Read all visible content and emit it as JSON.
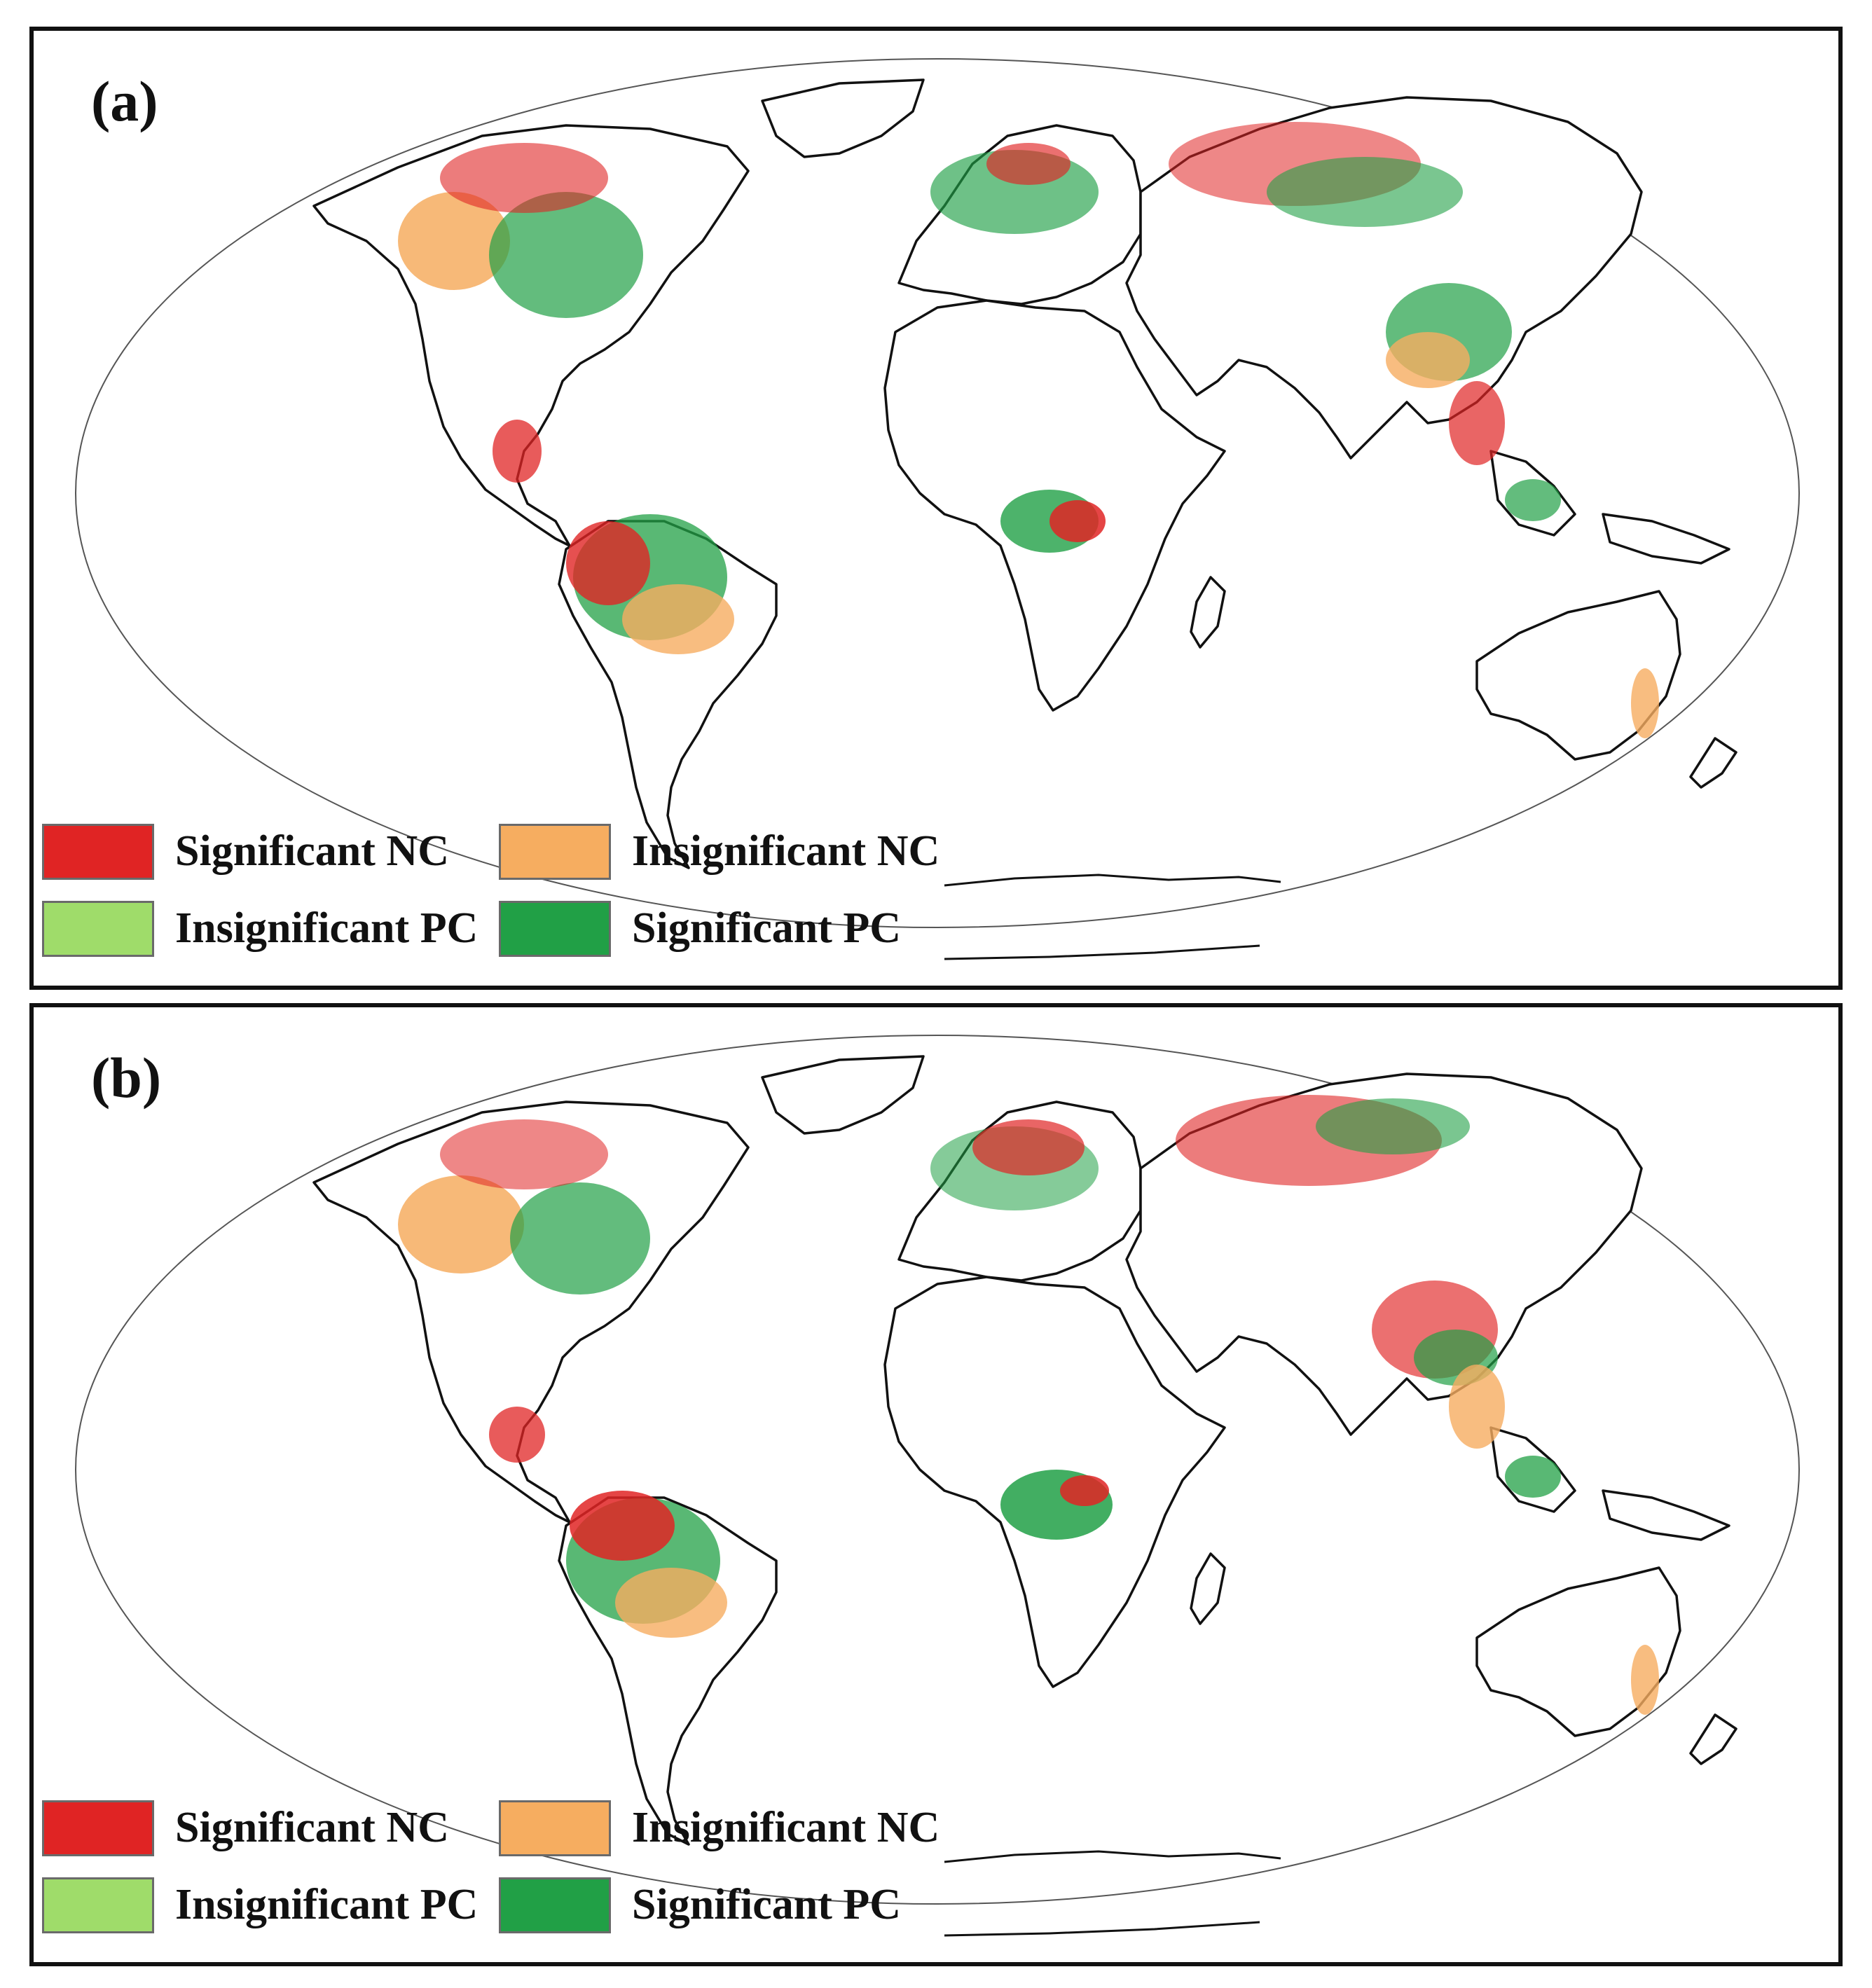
{
  "colors": {
    "significant_nc": "#e02424",
    "insignificant_nc": "#f6ad60",
    "insignificant_pc": "#9fdc6a",
    "significant_pc": "#21a046",
    "coastline": "#111111",
    "outline": "#555555"
  },
  "panels": [
    {
      "label": "(a)",
      "legend": [
        {
          "label": "Significant NC",
          "color": "#e02424"
        },
        {
          "label": "Insignificant NC",
          "color": "#f6ad60"
        },
        {
          "label": "Insignificant PC",
          "color": "#9fdc6a"
        },
        {
          "label": "Significant PC",
          "color": "#21a046"
        }
      ]
    },
    {
      "label": "(b)",
      "legend": [
        {
          "label": "Significant NC",
          "color": "#e02424"
        },
        {
          "label": "Insignificant NC",
          "color": "#f6ad60"
        },
        {
          "label": "Insignificant PC",
          "color": "#9fdc6a"
        },
        {
          "label": "Significant PC",
          "color": "#21a046"
        }
      ]
    }
  ]
}
